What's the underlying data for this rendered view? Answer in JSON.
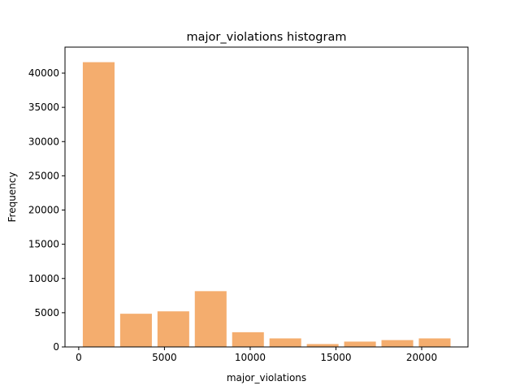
{
  "chart_data": {
    "type": "bar",
    "title": "major_violations histogram",
    "xlabel": "major_violations",
    "ylabel": "Frequency",
    "bar_color": "#f4ad6e",
    "xlim": [
      -800,
      22700
    ],
    "ylim": [
      0,
      43800
    ],
    "x_ticks": [
      0,
      5000,
      10000,
      15000,
      20000
    ],
    "y_ticks": [
      0,
      5000,
      10000,
      15000,
      20000,
      25000,
      30000,
      35000,
      40000
    ],
    "grid": false,
    "bins": [
      {
        "x0": 238,
        "x1": 2089,
        "count": 41600
      },
      {
        "x0": 2416,
        "x1": 4266,
        "count": 4850
      },
      {
        "x0": 4593,
        "x1": 6443,
        "count": 5200
      },
      {
        "x0": 6770,
        "x1": 8620,
        "count": 8150
      },
      {
        "x0": 8947,
        "x1": 10797,
        "count": 2150
      },
      {
        "x0": 11124,
        "x1": 12974,
        "count": 1250
      },
      {
        "x0": 13301,
        "x1": 15151,
        "count": 420
      },
      {
        "x0": 15478,
        "x1": 17328,
        "count": 780
      },
      {
        "x0": 17655,
        "x1": 19505,
        "count": 1000
      },
      {
        "x0": 19832,
        "x1": 21682,
        "count": 1250
      }
    ]
  }
}
